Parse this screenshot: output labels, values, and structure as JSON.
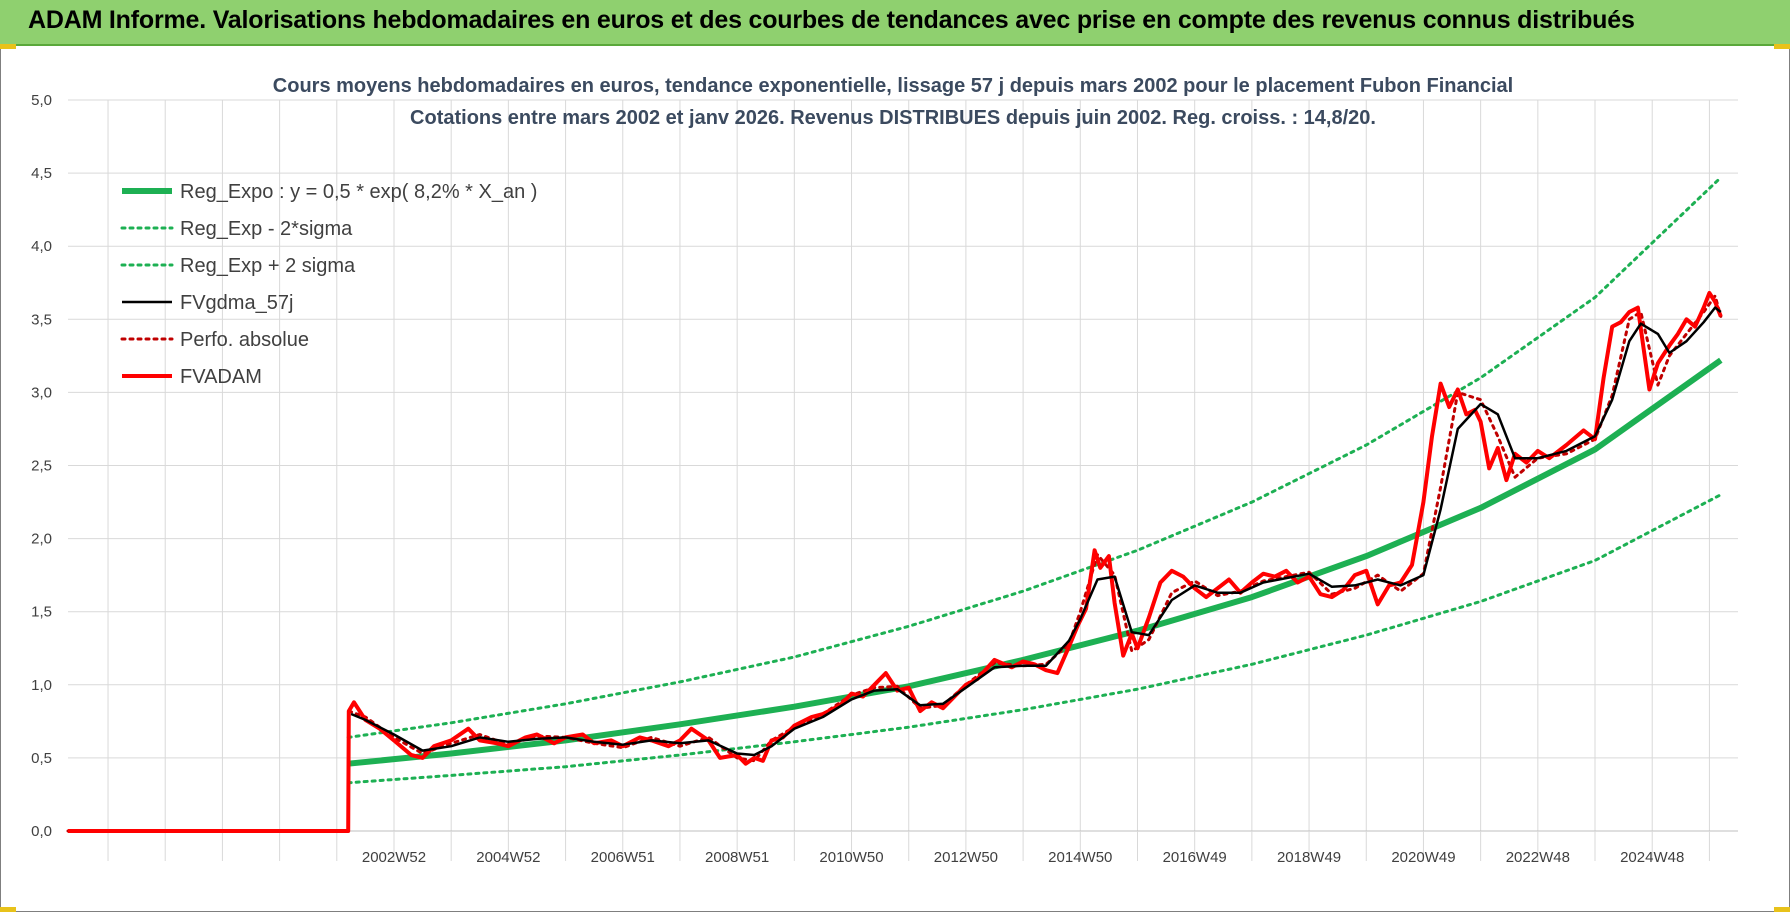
{
  "banner": {
    "title": "ADAM Informe. Valorisations hebdomadaires en euros et des courbes de tendances avec prise en compte des revenus connus distribués"
  },
  "colors": {
    "banner": "#8fd06f",
    "trend": "#1db053",
    "smooth": "#000000",
    "price": "#ff0000",
    "grid": "#d9d9d9"
  },
  "chart_data": {
    "type": "line",
    "title": "Cours moyens hebdomadaires en euros, tendance exponentielle, lissage 57 j depuis mars 2002 pour le placement Fubon Financial",
    "subtitle": "Cotations entre mars 2002 et janv 2026. Revenus DISTRIBUES depuis juin 2002. Reg. croiss. : 14,8/20.",
    "ylim": [
      0,
      5
    ],
    "xlim": [
      1997.3,
      2026.5
    ],
    "y_ticks": [
      "0,0",
      "0,5",
      "1,0",
      "1,5",
      "2,0",
      "2,5",
      "3,0",
      "3,5",
      "4,0",
      "4,5",
      "5,0"
    ],
    "x_ticks": [
      {
        "label": "2002W52",
        "x": 2003.0
      },
      {
        "label": "2004W52",
        "x": 2005.0
      },
      {
        "label": "2006W51",
        "x": 2007.0
      },
      {
        "label": "2008W51",
        "x": 2009.0
      },
      {
        "label": "2010W50",
        "x": 2011.0
      },
      {
        "label": "2012W50",
        "x": 2013.0
      },
      {
        "label": "2014W50",
        "x": 2015.0
      },
      {
        "label": "2016W49",
        "x": 2017.0
      },
      {
        "label": "2018W49",
        "x": 2019.0
      },
      {
        "label": "2020W49",
        "x": 2021.0
      },
      {
        "label": "2022W48",
        "x": 2023.0
      },
      {
        "label": "2024W48",
        "x": 2025.0
      }
    ],
    "grid": true,
    "legend_position": "top-left",
    "series": [
      {
        "name": "Reg_Expo : y = 0,5 * exp( 8,2% *  X_an )",
        "style": "solid-thick",
        "color": "#1db053",
        "x": [
          2002.2,
          2004,
          2006,
          2008,
          2010,
          2012,
          2014,
          2016,
          2018,
          2020,
          2022,
          2024,
          2026.2
        ],
        "values": [
          0.46,
          0.53,
          0.62,
          0.73,
          0.85,
          0.99,
          1.17,
          1.37,
          1.6,
          1.88,
          2.21,
          2.61,
          3.22
        ]
      },
      {
        "name": "Reg_Exp - 2*sigma",
        "style": "dotted",
        "color": "#1db053",
        "x": [
          2002.2,
          2004,
          2006,
          2008,
          2010,
          2012,
          2014,
          2016,
          2018,
          2020,
          2022,
          2024,
          2026.2
        ],
        "values": [
          0.33,
          0.38,
          0.44,
          0.52,
          0.61,
          0.71,
          0.83,
          0.97,
          1.14,
          1.34,
          1.57,
          1.85,
          2.3
        ]
      },
      {
        "name": "Reg_Exp + 2 sigma",
        "style": "dotted",
        "color": "#1db053",
        "x": [
          2002.2,
          2004,
          2006,
          2008,
          2010,
          2012,
          2014,
          2016,
          2018,
          2020,
          2022,
          2024,
          2026.2
        ],
        "values": [
          0.64,
          0.74,
          0.87,
          1.02,
          1.19,
          1.4,
          1.64,
          1.92,
          2.25,
          2.64,
          3.1,
          3.65,
          4.47
        ]
      },
      {
        "name": "FVgdma_57j",
        "style": "solid",
        "color": "#000000",
        "x": [
          2002.25,
          2002.5,
          2003.0,
          2003.5,
          2004.0,
          2004.5,
          2005.0,
          2005.5,
          2006.0,
          2006.5,
          2007.0,
          2007.5,
          2008.0,
          2008.5,
          2009.0,
          2009.3,
          2009.6,
          2010.0,
          2010.5,
          2011.0,
          2011.4,
          2011.8,
          2012.2,
          2012.6,
          2013.0,
          2013.5,
          2014.0,
          2014.4,
          2014.8,
          2015.0,
          2015.3,
          2015.6,
          2015.9,
          2016.2,
          2016.6,
          2017.0,
          2017.4,
          2017.8,
          2018.2,
          2018.6,
          2019.0,
          2019.4,
          2019.8,
          2020.2,
          2020.6,
          2021.0,
          2021.3,
          2021.6,
          2022.0,
          2022.3,
          2022.6,
          2023.0,
          2023.5,
          2024.0,
          2024.3,
          2024.6,
          2024.8,
          2025.1,
          2025.3,
          2025.6,
          2025.9,
          2026.1,
          2026.2
        ],
        "values": [
          0.8,
          0.76,
          0.66,
          0.55,
          0.58,
          0.64,
          0.61,
          0.63,
          0.64,
          0.61,
          0.59,
          0.62,
          0.6,
          0.62,
          0.53,
          0.52,
          0.58,
          0.7,
          0.78,
          0.9,
          0.96,
          0.97,
          0.86,
          0.87,
          0.98,
          1.12,
          1.13,
          1.13,
          1.3,
          1.45,
          1.72,
          1.74,
          1.36,
          1.34,
          1.58,
          1.68,
          1.63,
          1.63,
          1.7,
          1.73,
          1.76,
          1.67,
          1.68,
          1.72,
          1.68,
          1.75,
          2.2,
          2.75,
          2.92,
          2.85,
          2.55,
          2.55,
          2.6,
          2.7,
          2.95,
          3.35,
          3.47,
          3.4,
          3.27,
          3.35,
          3.48,
          3.58,
          3.55
        ]
      },
      {
        "name": "Perfo. absolue",
        "style": "dotted",
        "color": "#c00000",
        "x": [
          1997.3,
          2002.2,
          2002.21,
          2002.5,
          2003.0,
          2003.5,
          2004.0,
          2004.5,
          2005.0,
          2005.5,
          2006.0,
          2006.5,
          2007.0,
          2007.5,
          2008.0,
          2008.5,
          2009.0,
          2009.3,
          2009.6,
          2010.0,
          2010.5,
          2011.0,
          2011.4,
          2011.8,
          2012.2,
          2012.6,
          2013.0,
          2013.5,
          2014.0,
          2014.4,
          2014.8,
          2015.0,
          2015.3,
          2015.6,
          2015.9,
          2016.2,
          2016.6,
          2017.0,
          2017.4,
          2017.8,
          2018.2,
          2018.6,
          2019.0,
          2019.4,
          2019.8,
          2020.2,
          2020.6,
          2021.0,
          2021.3,
          2021.6,
          2022.0,
          2022.3,
          2022.6,
          2023.0,
          2023.5,
          2024.0,
          2024.3,
          2024.6,
          2024.8,
          2025.1,
          2025.3,
          2025.6,
          2025.9,
          2026.1,
          2026.2
        ],
        "values": [
          0.0,
          0.0,
          0.82,
          0.78,
          0.64,
          0.53,
          0.6,
          0.66,
          0.59,
          0.65,
          0.64,
          0.6,
          0.57,
          0.64,
          0.58,
          0.64,
          0.5,
          0.48,
          0.62,
          0.71,
          0.8,
          0.93,
          0.98,
          0.99,
          0.84,
          0.86,
          1.0,
          1.15,
          1.13,
          1.14,
          1.28,
          1.5,
          1.89,
          1.75,
          1.23,
          1.31,
          1.63,
          1.71,
          1.61,
          1.64,
          1.71,
          1.74,
          1.77,
          1.62,
          1.66,
          1.75,
          1.64,
          1.76,
          2.35,
          3.0,
          2.95,
          2.7,
          2.42,
          2.55,
          2.58,
          2.68,
          2.98,
          3.5,
          3.55,
          3.05,
          3.25,
          3.4,
          3.55,
          3.66,
          3.52
        ]
      },
      {
        "name": "FVADAM",
        "style": "solid-thick",
        "color": "#ff0000",
        "x": [
          1997.3,
          2002.2,
          2002.21,
          2002.3,
          2002.5,
          2002.75,
          2003.0,
          2003.3,
          2003.5,
          2003.7,
          2004.0,
          2004.3,
          2004.5,
          2004.8,
          2005.0,
          2005.3,
          2005.5,
          2005.8,
          2006.0,
          2006.3,
          2006.5,
          2006.8,
          2007.0,
          2007.3,
          2007.5,
          2007.8,
          2008.0,
          2008.2,
          2008.5,
          2008.7,
          2009.0,
          2009.15,
          2009.3,
          2009.45,
          2009.6,
          2009.8,
          2010.0,
          2010.3,
          2010.5,
          2010.8,
          2011.0,
          2011.2,
          2011.4,
          2011.6,
          2011.8,
          2012.0,
          2012.2,
          2012.4,
          2012.6,
          2012.8,
          2013.0,
          2013.2,
          2013.5,
          2013.8,
          2014.0,
          2014.2,
          2014.4,
          2014.6,
          2014.8,
          2014.95,
          2015.1,
          2015.25,
          2015.35,
          2015.5,
          2015.6,
          2015.75,
          2015.9,
          2016.0,
          2016.2,
          2016.4,
          2016.6,
          2016.8,
          2017.0,
          2017.2,
          2017.4,
          2017.6,
          2017.8,
          2018.0,
          2018.2,
          2018.4,
          2018.6,
          2018.8,
          2019.0,
          2019.2,
          2019.4,
          2019.6,
          2019.8,
          2020.0,
          2020.2,
          2020.4,
          2020.6,
          2020.8,
          2021.0,
          2021.15,
          2021.3,
          2021.45,
          2021.6,
          2021.75,
          2021.9,
          2022.0,
          2022.15,
          2022.3,
          2022.45,
          2022.6,
          2022.8,
          2023.0,
          2023.2,
          2023.5,
          2023.8,
          2024.0,
          2024.15,
          2024.3,
          2024.45,
          2024.6,
          2024.75,
          2024.85,
          2024.95,
          2025.1,
          2025.3,
          2025.45,
          2025.6,
          2025.75,
          2025.9,
          2026.0,
          2026.1,
          2026.2
        ],
        "values": [
          0.0,
          0.0,
          0.82,
          0.88,
          0.76,
          0.7,
          0.62,
          0.52,
          0.5,
          0.58,
          0.62,
          0.7,
          0.62,
          0.6,
          0.58,
          0.64,
          0.66,
          0.6,
          0.64,
          0.66,
          0.6,
          0.62,
          0.58,
          0.64,
          0.62,
          0.58,
          0.62,
          0.7,
          0.62,
          0.5,
          0.52,
          0.46,
          0.5,
          0.48,
          0.62,
          0.64,
          0.72,
          0.78,
          0.8,
          0.86,
          0.94,
          0.92,
          1.0,
          1.08,
          0.96,
          0.98,
          0.82,
          0.88,
          0.84,
          0.92,
          1.0,
          1.04,
          1.17,
          1.12,
          1.16,
          1.14,
          1.1,
          1.08,
          1.26,
          1.4,
          1.52,
          1.92,
          1.8,
          1.88,
          1.56,
          1.2,
          1.35,
          1.25,
          1.46,
          1.7,
          1.78,
          1.74,
          1.66,
          1.6,
          1.66,
          1.72,
          1.63,
          1.7,
          1.76,
          1.74,
          1.78,
          1.7,
          1.74,
          1.62,
          1.6,
          1.65,
          1.75,
          1.78,
          1.55,
          1.68,
          1.7,
          1.82,
          2.25,
          2.7,
          3.06,
          2.9,
          3.02,
          2.85,
          2.88,
          2.8,
          2.48,
          2.62,
          2.4,
          2.58,
          2.52,
          2.6,
          2.55,
          2.64,
          2.74,
          2.68,
          3.1,
          3.45,
          3.48,
          3.55,
          3.58,
          3.3,
          3.02,
          3.2,
          3.32,
          3.4,
          3.5,
          3.45,
          3.58,
          3.68,
          3.62,
          3.52
        ]
      }
    ]
  }
}
